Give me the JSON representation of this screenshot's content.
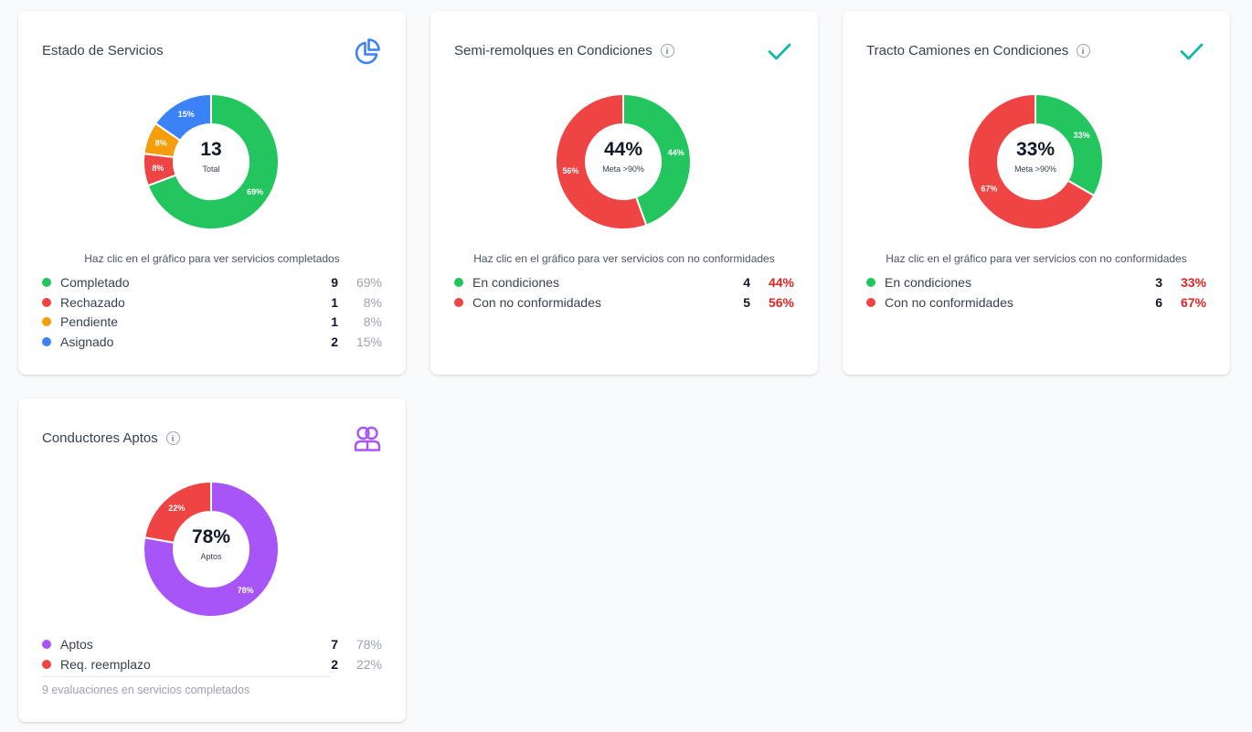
{
  "colors": {
    "green": "#22c55e",
    "red": "#ef4444",
    "orange": "#f59e0b",
    "blue": "#3b82f6",
    "purple": "#a855f7",
    "teal": "#14b8a6"
  },
  "cards": [
    {
      "title": "Estado de Servicios",
      "icon": "pie-chart-icon",
      "center_value": "13",
      "center_label": "Total",
      "hint": "Haz clic en el gráfico para ver servicios completados",
      "legend": [
        {
          "label": "Completado",
          "count": "9",
          "pct": "69%"
        },
        {
          "label": "Rechazado",
          "count": "1",
          "pct": "8%"
        },
        {
          "label": "Pendiente",
          "count": "1",
          "pct": "8%"
        },
        {
          "label": "Asignado",
          "count": "2",
          "pct": "15%"
        }
      ]
    },
    {
      "title": "Semi-remolques en Condiciones",
      "icon": "check-icon",
      "center_value": "44%",
      "center_label": "Meta >90%",
      "hint": "Haz clic en el gráfico para ver servicios con no conformidades",
      "legend": [
        {
          "label": "En condiciones",
          "count": "4",
          "pct": "44%"
        },
        {
          "label": "Con no conformidades",
          "count": "5",
          "pct": "56%"
        }
      ]
    },
    {
      "title": "Tracto Camiones en Condiciones",
      "icon": "check-icon",
      "center_value": "33%",
      "center_label": "Meta >90%",
      "hint": "Haz clic en el gráfico para ver servicios con no conformidades",
      "legend": [
        {
          "label": "En condiciones",
          "count": "3",
          "pct": "33%"
        },
        {
          "label": "Con no conformidades",
          "count": "6",
          "pct": "67%"
        }
      ]
    },
    {
      "title": "Conductores Aptos",
      "icon": "users-icon",
      "center_value": "78%",
      "center_label": "Aptos",
      "footnote": "9 evaluaciones en servicios completados",
      "legend": [
        {
          "label": "Aptos",
          "count": "7",
          "pct": "78%"
        },
        {
          "label": "Req. reemplazo",
          "count": "2",
          "pct": "22%"
        }
      ]
    }
  ],
  "chart_data": [
    {
      "type": "pie",
      "title": "Estado de Servicios",
      "categories": [
        "Completado",
        "Rechazado",
        "Pendiente",
        "Asignado"
      ],
      "values": [
        9,
        1,
        1,
        2
      ],
      "labels": [
        "69%",
        "8%",
        "8%",
        "15%"
      ],
      "colors": [
        "#22c55e",
        "#ef4444",
        "#f59e0b",
        "#3b82f6"
      ]
    },
    {
      "type": "pie",
      "title": "Semi-remolques en Condiciones",
      "categories": [
        "En condiciones",
        "Con no conformidades"
      ],
      "values": [
        4,
        5
      ],
      "labels": [
        "44%",
        "56%"
      ],
      "colors": [
        "#22c55e",
        "#ef4444"
      ]
    },
    {
      "type": "pie",
      "title": "Tracto Camiones en Condiciones",
      "categories": [
        "En condiciones",
        "Con no conformidades"
      ],
      "values": [
        3,
        6
      ],
      "labels": [
        "33%",
        "67%"
      ],
      "colors": [
        "#22c55e",
        "#ef4444"
      ]
    },
    {
      "type": "pie",
      "title": "Conductores Aptos",
      "categories": [
        "Aptos",
        "Req. reemplazo"
      ],
      "values": [
        7,
        2
      ],
      "labels": [
        "78%",
        "22%"
      ],
      "colors": [
        "#a855f7",
        "#ef4444"
      ]
    }
  ]
}
